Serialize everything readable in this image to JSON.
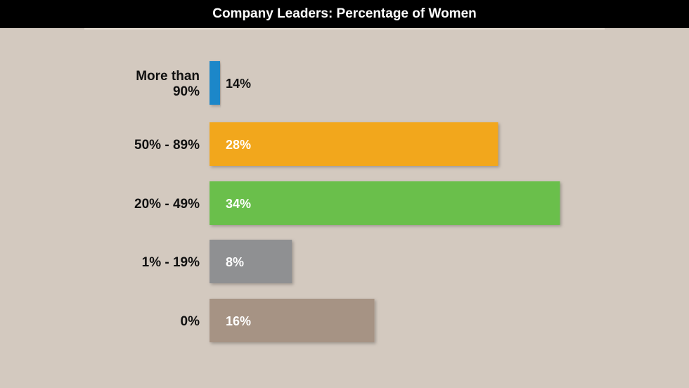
{
  "chart_data": {
    "type": "bar",
    "orientation": "horizontal",
    "title": "Company Leaders: Percentage of Women",
    "categories": [
      "More than 90%",
      "50% - 89%",
      "20% - 49%",
      "1% - 19%",
      "0%"
    ],
    "category_lines": [
      [
        "More than",
        "90%"
      ],
      [
        "50% - 89%"
      ],
      [
        "20% - 49%"
      ],
      [
        "1% - 19%"
      ],
      [
        "0%"
      ]
    ],
    "values": [
      14,
      28,
      34,
      8,
      16
    ],
    "value_labels": [
      "14%",
      "28%",
      "34%",
      "8%",
      "16%"
    ],
    "colors": [
      "#1b87c9",
      "#f2a71e",
      "#6bbf4b",
      "#8f9092",
      "#a69384"
    ],
    "label_colors": [
      "#111111",
      "#ffffff",
      "#ffffff",
      "#ffffff",
      "#ffffff"
    ],
    "xlim": [
      0,
      40
    ],
    "grid": false,
    "legend": "none"
  }
}
